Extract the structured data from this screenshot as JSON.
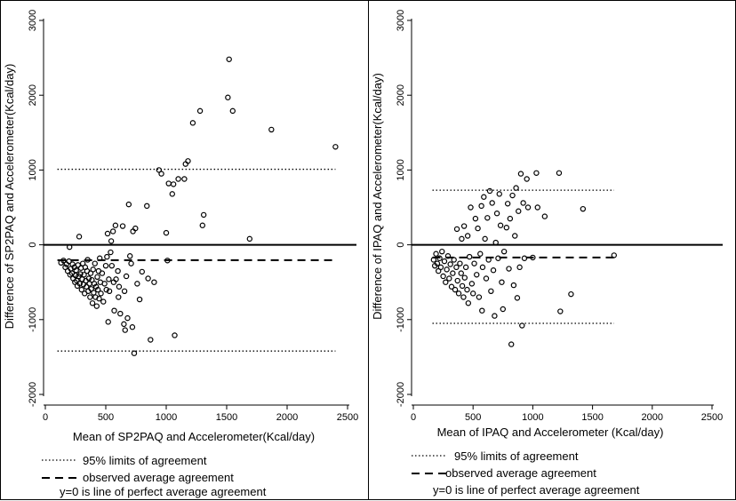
{
  "chart_data": [
    {
      "type": "scatter",
      "xlabel": "Mean of SP2PAQ and Accelerometer(Kcal/day)",
      "ylabel": "Difference of SP2PAQ and Accelerometer(Kcal/day)",
      "xlim": [
        0,
        2500
      ],
      "ylim": [
        -2000,
        3000
      ],
      "x_ticks": [
        "0",
        "500",
        "1000",
        "1500",
        "2000",
        "2500"
      ],
      "y_ticks": [
        "-2000",
        "-1000",
        "0",
        "1000",
        "2000",
        "3000"
      ],
      "grid": false,
      "legend_position": "bottom",
      "reference_lines": [
        {
          "name": "95% limits of agreement",
          "style": "dotted",
          "y": [
            1010,
            -1420
          ],
          "x_range": [
            100,
            2400
          ]
        },
        {
          "name": "observed average agreement",
          "style": "dashed",
          "y": -205,
          "x_range": [
            100,
            2400
          ]
        },
        {
          "name": "y=0 is line of perfect average agreement",
          "style": "solid",
          "y": 0,
          "x_range": [
            0,
            2500
          ]
        }
      ],
      "legend": [
        {
          "style": "dotted",
          "text": "95% limits of agreement"
        },
        {
          "style": "dashed",
          "text": "observed average agreement"
        },
        {
          "style": "none",
          "text": "y=0 is line of perfect average agreement"
        }
      ],
      "points": [
        [
          130,
          -240
        ],
        [
          150,
          -210
        ],
        [
          165,
          -300
        ],
        [
          175,
          -260
        ],
        [
          185,
          -350
        ],
        [
          195,
          -220
        ],
        [
          200,
          -30
        ],
        [
          205,
          -400
        ],
        [
          210,
          -320
        ],
        [
          220,
          -380
        ],
        [
          225,
          -260
        ],
        [
          230,
          -450
        ],
        [
          240,
          -300
        ],
        [
          245,
          -500
        ],
        [
          250,
          -410
        ],
        [
          255,
          -340
        ],
        [
          260,
          -480
        ],
        [
          265,
          -550
        ],
        [
          270,
          -270
        ],
        [
          275,
          -420
        ],
        [
          280,
          110
        ],
        [
          285,
          -520
        ],
        [
          290,
          -390
        ],
        [
          295,
          -310
        ],
        [
          300,
          -600
        ],
        [
          305,
          -460
        ],
        [
          310,
          -250
        ],
        [
          315,
          -530
        ],
        [
          320,
          -400
        ],
        [
          325,
          -650
        ],
        [
          330,
          -300
        ],
        [
          335,
          -480
        ],
        [
          340,
          -560
        ],
        [
          345,
          -350
        ],
        [
          350,
          -200
        ],
        [
          355,
          -620
        ],
        [
          360,
          -450
        ],
        [
          365,
          -520
        ],
        [
          370,
          -700
        ],
        [
          375,
          -380
        ],
        [
          380,
          -590
        ],
        [
          385,
          -470
        ],
        [
          390,
          -780
        ],
        [
          395,
          -330
        ],
        [
          400,
          -640
        ],
        [
          405,
          -520
        ],
        [
          410,
          -250
        ],
        [
          415,
          -700
        ],
        [
          420,
          -560
        ],
        [
          425,
          -820
        ],
        [
          430,
          -430
        ],
        [
          435,
          -600
        ],
        [
          440,
          -350
        ],
        [
          445,
          -720
        ],
        [
          450,
          -180
        ],
        [
          455,
          -500
        ],
        [
          460,
          -650
        ],
        [
          470,
          -380
        ],
        [
          480,
          -760
        ],
        [
          490,
          -520
        ],
        [
          500,
          -280
        ],
        [
          505,
          -600
        ],
        [
          510,
          -160
        ],
        [
          515,
          150
        ],
        [
          520,
          -1030
        ],
        [
          525,
          -460
        ],
        [
          530,
          -620
        ],
        [
          540,
          -100
        ],
        [
          545,
          50
        ],
        [
          550,
          -280
        ],
        [
          560,
          180
        ],
        [
          565,
          -500
        ],
        [
          570,
          -880
        ],
        [
          580,
          260
        ],
        [
          585,
          -460
        ],
        [
          600,
          -350
        ],
        [
          605,
          -700
        ],
        [
          610,
          -560
        ],
        [
          620,
          -920
        ],
        [
          640,
          250
        ],
        [
          650,
          -1060
        ],
        [
          655,
          -620
        ],
        [
          660,
          -1140
        ],
        [
          670,
          -420
        ],
        [
          680,
          -980
        ],
        [
          690,
          540
        ],
        [
          700,
          -150
        ],
        [
          710,
          -250
        ],
        [
          720,
          -1100
        ],
        [
          725,
          180
        ],
        [
          735,
          -1450
        ],
        [
          745,
          220
        ],
        [
          760,
          -520
        ],
        [
          780,
          -730
        ],
        [
          800,
          -360
        ],
        [
          840,
          520
        ],
        [
          850,
          -450
        ],
        [
          870,
          -1270
        ],
        [
          900,
          -500
        ],
        [
          940,
          1000
        ],
        [
          960,
          950
        ],
        [
          1000,
          160
        ],
        [
          1010,
          -210
        ],
        [
          1020,
          820
        ],
        [
          1050,
          680
        ],
        [
          1060,
          810
        ],
        [
          1070,
          -1210
        ],
        [
          1100,
          880
        ],
        [
          1150,
          880
        ],
        [
          1160,
          1080
        ],
        [
          1180,
          1120
        ],
        [
          1220,
          1630
        ],
        [
          1280,
          1790
        ],
        [
          1300,
          260
        ],
        [
          1310,
          400
        ],
        [
          1510,
          1970
        ],
        [
          1520,
          2480
        ],
        [
          1550,
          1790
        ],
        [
          1690,
          80
        ],
        [
          1870,
          1540
        ],
        [
          2400,
          1310
        ]
      ]
    },
    {
      "type": "scatter",
      "xlabel": "Mean of IPAQ and Accelerometer (Kcal/day)",
      "ylabel": "Difference of IPAQ and Accelerometer(Kcal/day)",
      "xlim": [
        0,
        2500
      ],
      "ylim": [
        -2000,
        3000
      ],
      "x_ticks": [
        "0",
        "500",
        "1000",
        "1500",
        "2000",
        "2500"
      ],
      "y_ticks": [
        "-2000",
        "-1000",
        "0",
        "1000",
        "2000",
        "3000"
      ],
      "grid": false,
      "legend_position": "bottom",
      "reference_lines": [
        {
          "name": "95% limits of agreement",
          "style": "dotted",
          "y": [
            730,
            -1050
          ],
          "x_range": [
            160,
            1680
          ]
        },
        {
          "name": "observed average agreement",
          "style": "dashed",
          "y": -170,
          "x_range": [
            160,
            1680
          ]
        },
        {
          "name": "y=0 is line of perfect average agreement",
          "style": "solid",
          "y": 0,
          "x_range": [
            0,
            2500
          ]
        }
      ],
      "legend": [
        {
          "style": "dotted",
          "text": "95% limits of agreement"
        },
        {
          "style": "dashed",
          "text": "observed average agreement"
        },
        {
          "style": "none",
          "text": "y=0 is line of perfect average agreement"
        }
      ],
      "points": [
        [
          170,
          -200
        ],
        [
          180,
          -280
        ],
        [
          190,
          -120
        ],
        [
          200,
          -250
        ],
        [
          210,
          -350
        ],
        [
          220,
          -180
        ],
        [
          230,
          -300
        ],
        [
          240,
          -90
        ],
        [
          250,
          -420
        ],
        [
          260,
          -220
        ],
        [
          270,
          -500
        ],
        [
          280,
          -330
        ],
        [
          290,
          -150
        ],
        [
          300,
          -450
        ],
        [
          310,
          -260
        ],
        [
          320,
          -560
        ],
        [
          330,
          -380
        ],
        [
          340,
          -200
        ],
        [
          350,
          -600
        ],
        [
          360,
          -300
        ],
        [
          365,
          210
        ],
        [
          370,
          -480
        ],
        [
          380,
          -650
        ],
        [
          390,
          -250
        ],
        [
          400,
          -380
        ],
        [
          405,
          80
        ],
        [
          410,
          -550
        ],
        [
          420,
          -700
        ],
        [
          425,
          250
        ],
        [
          430,
          -440
        ],
        [
          440,
          -300
        ],
        [
          450,
          -600
        ],
        [
          455,
          120
        ],
        [
          460,
          -780
        ],
        [
          470,
          -160
        ],
        [
          480,
          500
        ],
        [
          490,
          -520
        ],
        [
          500,
          -650
        ],
        [
          510,
          -250
        ],
        [
          520,
          350
        ],
        [
          530,
          -400
        ],
        [
          540,
          220
        ],
        [
          550,
          -700
        ],
        [
          560,
          -120
        ],
        [
          570,
          520
        ],
        [
          575,
          -880
        ],
        [
          580,
          -300
        ],
        [
          590,
          640
        ],
        [
          600,
          80
        ],
        [
          610,
          -450
        ],
        [
          620,
          360
        ],
        [
          630,
          -200
        ],
        [
          640,
          720
        ],
        [
          650,
          -620
        ],
        [
          660,
          560
        ],
        [
          670,
          -340
        ],
        [
          680,
          -950
        ],
        [
          690,
          30
        ],
        [
          700,
          420
        ],
        [
          710,
          -180
        ],
        [
          720,
          680
        ],
        [
          730,
          260
        ],
        [
          740,
          -500
        ],
        [
          750,
          -860
        ],
        [
          760,
          -90
        ],
        [
          780,
          230
        ],
        [
          790,
          550
        ],
        [
          800,
          -320
        ],
        [
          810,
          350
        ],
        [
          820,
          -1330
        ],
        [
          830,
          660
        ],
        [
          840,
          -540
        ],
        [
          850,
          120
        ],
        [
          860,
          760
        ],
        [
          870,
          -710
        ],
        [
          880,
          450
        ],
        [
          890,
          -300
        ],
        [
          900,
          950
        ],
        [
          910,
          -1080
        ],
        [
          920,
          560
        ],
        [
          930,
          -180
        ],
        [
          950,
          880
        ],
        [
          960,
          500
        ],
        [
          1000,
          -170
        ],
        [
          1030,
          960
        ],
        [
          1040,
          500
        ],
        [
          1100,
          380
        ],
        [
          1220,
          960
        ],
        [
          1230,
          -890
        ],
        [
          1320,
          -660
        ],
        [
          1420,
          480
        ],
        [
          1680,
          -140
        ]
      ]
    }
  ]
}
